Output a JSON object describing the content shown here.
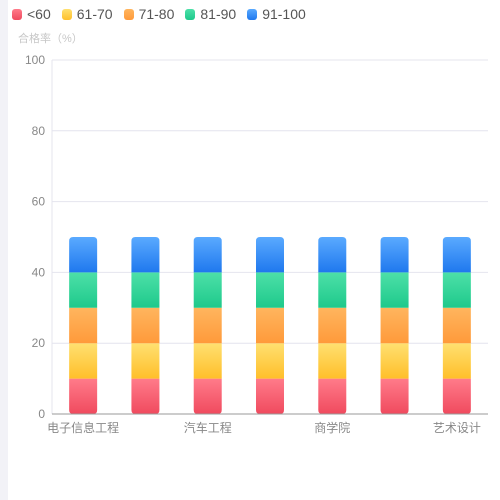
{
  "chart_data": {
    "type": "bar",
    "stacked": true,
    "ylabel": "合格率（%）",
    "ylim": [
      0,
      100
    ],
    "yticks": [
      0,
      20,
      40,
      60,
      80,
      100
    ],
    "grid": true,
    "legend_position": "top-left",
    "categories": [
      "电子信息工程",
      "",
      "汽车工程",
      "",
      "商学院",
      "",
      "艺术设计"
    ],
    "series": [
      {
        "name": "<60",
        "values": [
          10,
          10,
          10,
          10,
          10,
          10,
          10
        ],
        "color_top": "#ff7b8a",
        "color_bottom": "#f04a5e"
      },
      {
        "name": "61-70",
        "values": [
          10,
          10,
          10,
          10,
          10,
          10,
          10
        ],
        "color_top": "#ffe070",
        "color_bottom": "#ffbf2a"
      },
      {
        "name": "71-80",
        "values": [
          10,
          10,
          10,
          10,
          10,
          10,
          10
        ],
        "color_top": "#ffb55e",
        "color_bottom": "#ff9a3a"
      },
      {
        "name": "81-90",
        "values": [
          10,
          10,
          10,
          10,
          10,
          10,
          10
        ],
        "color_top": "#4de0a8",
        "color_bottom": "#1ec98b"
      },
      {
        "name": "91-100",
        "values": [
          10,
          10,
          10,
          10,
          10,
          10,
          10
        ],
        "color_top": "#5aaaff",
        "color_bottom": "#1f78ee"
      }
    ]
  },
  "colors": {
    "axis": "#9a9a9a",
    "grid": "#e4e4ee",
    "tick_text": "#888888"
  }
}
